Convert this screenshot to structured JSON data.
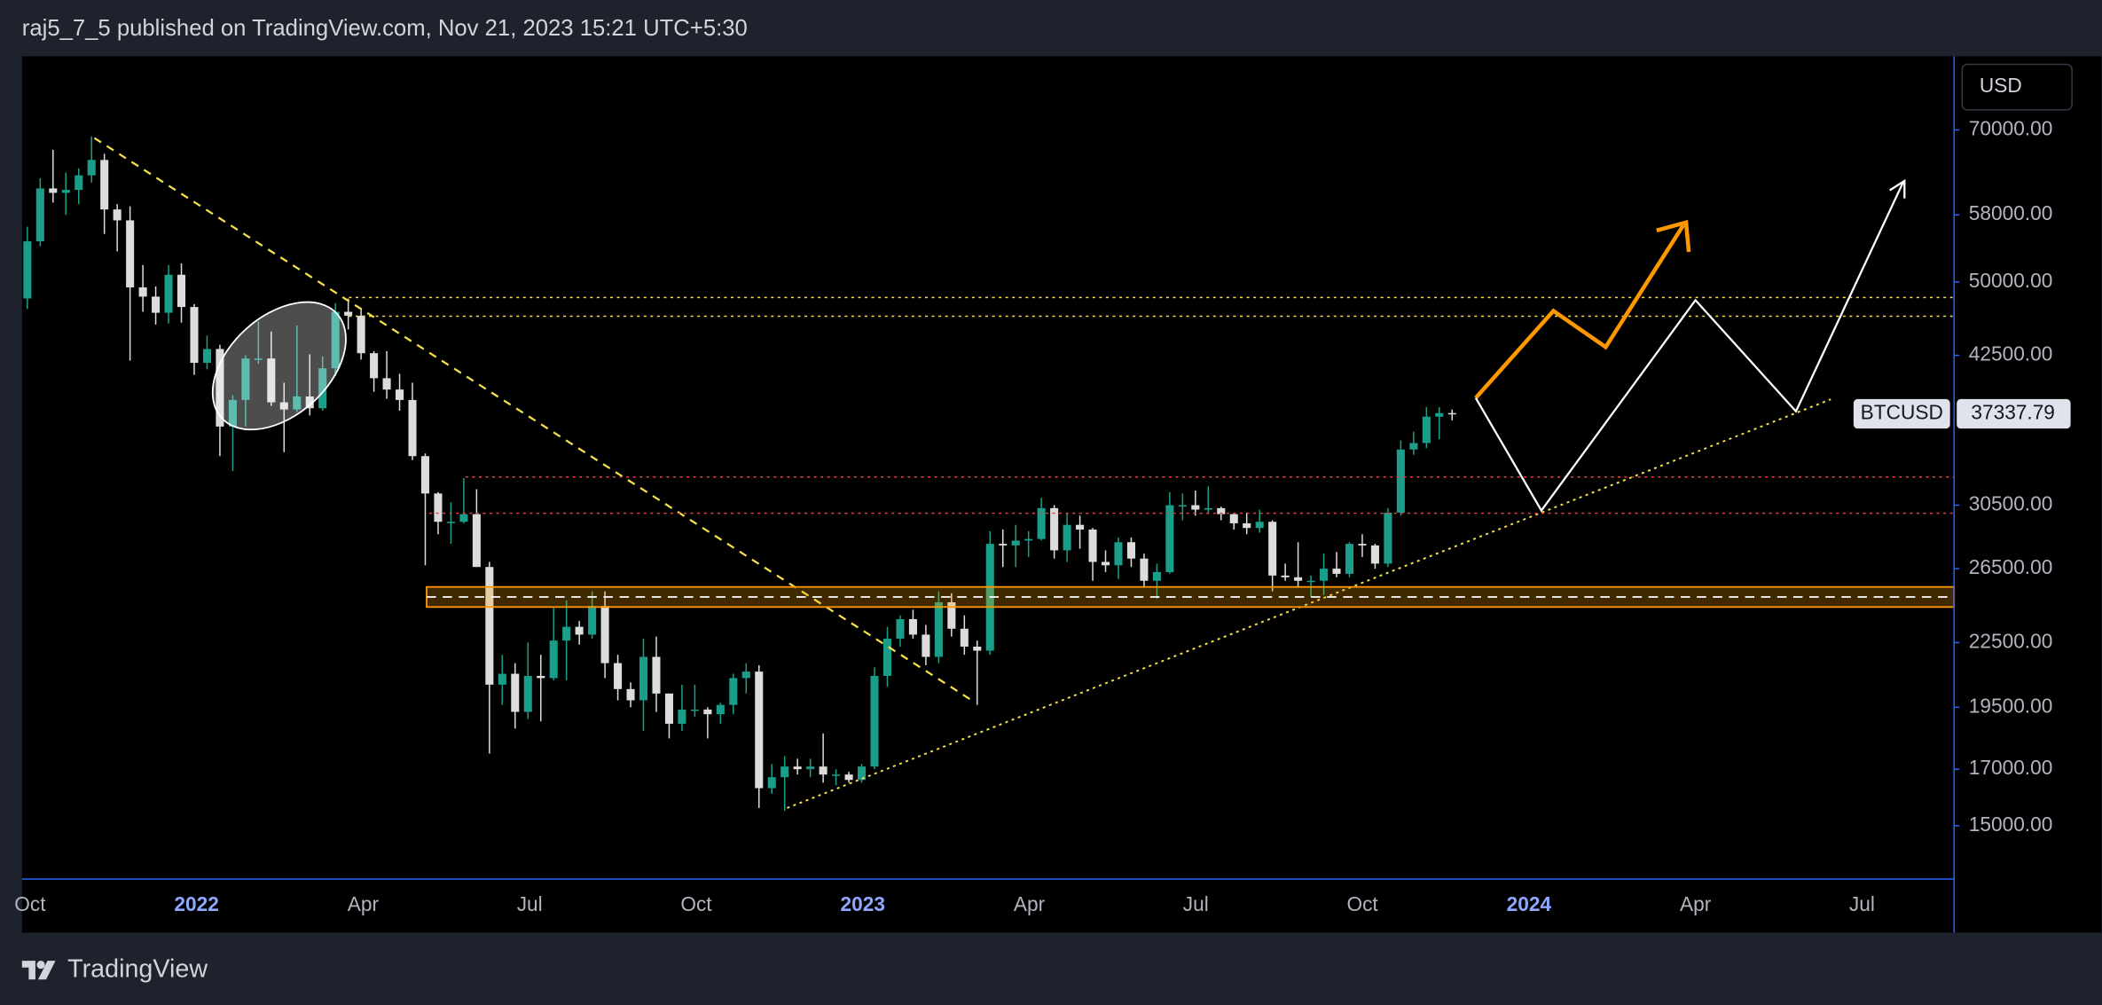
{
  "header": {
    "text": "raj5_7_5 published on TradingView.com, Nov 21, 2023 15:21 UTC+5:30"
  },
  "footer": {
    "brand": "TradingView"
  },
  "chart_data": {
    "type": "candlestick",
    "symbol": "BTCUSD",
    "currency": "USD",
    "log_scale": true,
    "up_color": "#1a9e8a",
    "down_color": "#dcdcdc",
    "ylim": [
      13330,
      82400
    ],
    "yticks": [
      {
        "value": 70000,
        "label": "70000.00"
      },
      {
        "value": 58000,
        "label": "58000.00"
      },
      {
        "value": 50000,
        "label": "50000.00"
      },
      {
        "value": 42500,
        "label": "42500.00"
      },
      {
        "value": 30500,
        "label": "30500.00"
      },
      {
        "value": 26500,
        "label": "26500.00"
      },
      {
        "value": 22500,
        "label": "22500.00"
      },
      {
        "value": 19500,
        "label": "19500.00"
      },
      {
        "value": 17000,
        "label": "17000.00"
      },
      {
        "value": 15000,
        "label": "15000.00"
      }
    ],
    "xticks": [
      "Oct",
      "2022",
      "Apr",
      "Jul",
      "Oct",
      "2023",
      "Apr",
      "Jul",
      "Oct",
      "2024",
      "Apr",
      "Jul"
    ],
    "open": [
      48200,
      54700,
      61500,
      60900,
      61300,
      63300,
      65500,
      58700,
      57300,
      49400,
      48400,
      46700,
      50800,
      47300,
      41800,
      43100,
      36300,
      38500,
      42200,
      42200,
      38300,
      37700,
      38800,
      37800,
      41300,
      46800,
      46400,
      42700,
      40400,
      39400,
      38500,
      34000,
      31300,
      29400,
      29400,
      29900,
      26600,
      20500,
      21000,
      19300,
      20900,
      20800,
      22600,
      23300,
      22900,
      24400,
      21500,
      20300,
      19800,
      21800,
      20100,
      18800,
      19400,
      19400,
      19200,
      19600,
      20800,
      21100,
      16300,
      16700,
      17100,
      17000,
      17100,
      16800,
      16800,
      16600,
      17100,
      20900,
      22700,
      23700,
      22900,
      21800,
      24600,
      23200,
      22300,
      22100,
      28000,
      27900,
      28200,
      28300,
      30300,
      27600,
      29200,
      28900,
      26900,
      26700,
      28100,
      27100,
      25800,
      26300,
      30500,
      30500,
      30200,
      30300,
      29900,
      29300,
      29000,
      29400,
      26100,
      26000,
      25800,
      25800,
      26500,
      26200,
      28000,
      27900,
      26800,
      30000,
      34500,
      35000,
      37100,
      37400
    ],
    "high": [
      56500,
      62900,
      67000,
      63700,
      64300,
      69000,
      66400,
      59400,
      59100,
      51900,
      49500,
      51900,
      52100,
      47600,
      44400,
      43500,
      38900,
      42500,
      45800,
      44800,
      40000,
      45400,
      42600,
      42400,
      47700,
      48200,
      47200,
      42900,
      42900,
      40800,
      40000,
      34200,
      31400,
      30700,
      32400,
      31600,
      26900,
      21900,
      21500,
      22500,
      21900,
      24300,
      24700,
      23600,
      25200,
      25200,
      21900,
      20600,
      22700,
      22800,
      20100,
      20500,
      20500,
      19500,
      19700,
      21000,
      21500,
      21400,
      17200,
      17500,
      17400,
      17400,
      18400,
      17000,
      16900,
      17200,
      21300,
      23300,
      23900,
      24200,
      23400,
      25200,
      25100,
      23900,
      22600,
      28800,
      28900,
      29200,
      28800,
      31000,
      30500,
      30000,
      29800,
      29000,
      27600,
      28400,
      28400,
      27400,
      26800,
      31400,
      31300,
      31500,
      31800,
      30400,
      30000,
      30000,
      30200,
      29500,
      26800,
      28100,
      26100,
      27400,
      27500,
      28100,
      28600,
      28000,
      30300,
      35200,
      35900,
      37900,
      37900,
      37700
    ],
    "low": [
      47100,
      54100,
      59600,
      58000,
      59400,
      62300,
      55600,
      53500,
      42000,
      46800,
      45500,
      45600,
      45700,
      40700,
      41200,
      34000,
      32900,
      36300,
      41700,
      38000,
      34300,
      37500,
      37200,
      37600,
      40600,
      45000,
      42100,
      39200,
      38600,
      37600,
      33700,
      26700,
      28600,
      28000,
      29300,
      26600,
      17600,
      19600,
      18600,
      19000,
      18900,
      20700,
      20700,
      22400,
      22700,
      20800,
      19800,
      19500,
      18500,
      19300,
      18200,
      18500,
      19100,
      18200,
      18800,
      19200,
      20100,
      15600,
      16100,
      15500,
      16800,
      16700,
      16500,
      16400,
      16500,
      16500,
      17000,
      20400,
      22300,
      22700,
      21400,
      21500,
      22800,
      21900,
      19600,
      21900,
      26600,
      26600,
      27200,
      28200,
      27100,
      26900,
      27700,
      25800,
      26300,
      25900,
      26600,
      25400,
      24800,
      26200,
      29500,
      29800,
      29900,
      29500,
      28900,
      28600,
      28700,
      25200,
      25800,
      25400,
      24900,
      25000,
      26000,
      26000,
      27200,
      26500,
      26600,
      29800,
      34100,
      34600,
      35300,
      36800
    ],
    "close": [
      54700,
      61500,
      60900,
      61300,
      63300,
      65500,
      58700,
      57300,
      49400,
      48400,
      46700,
      50800,
      47300,
      41800,
      43100,
      36300,
      38500,
      42200,
      42200,
      38300,
      37700,
      38800,
      37800,
      41300,
      46800,
      46400,
      42700,
      40400,
      39400,
      38500,
      34000,
      31300,
      29400,
      29400,
      29900,
      26600,
      20500,
      21000,
      19300,
      20900,
      20800,
      22600,
      23300,
      22900,
      24400,
      21500,
      20300,
      19800,
      21800,
      20100,
      18800,
      19400,
      19400,
      19200,
      19600,
      20800,
      21100,
      16300,
      16700,
      17100,
      17000,
      17100,
      16800,
      16800,
      16600,
      17100,
      20900,
      22700,
      23700,
      22900,
      21800,
      24600,
      23200,
      22300,
      22100,
      28000,
      27900,
      28200,
      28300,
      30300,
      27600,
      29200,
      28900,
      26900,
      26700,
      28100,
      27100,
      25800,
      26300,
      30500,
      30500,
      30200,
      30300,
      29900,
      29300,
      29000,
      29400,
      26100,
      26000,
      25800,
      25800,
      26500,
      26200,
      28000,
      27900,
      26800,
      30000,
      34500,
      35000,
      37100,
      37400,
      37337.79
    ]
  }
}
